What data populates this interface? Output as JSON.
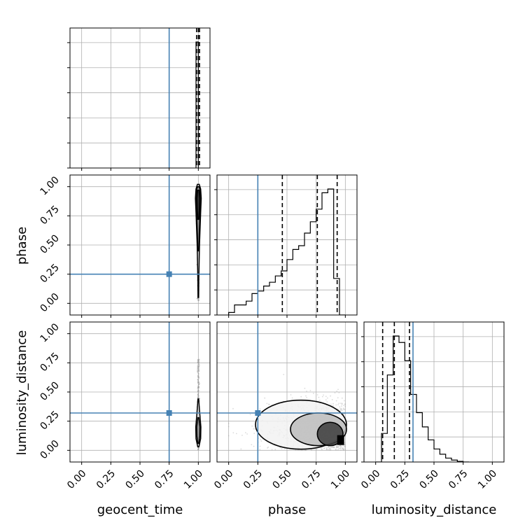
{
  "chart_data": {
    "type": "corner",
    "parameters": [
      "geocent_time",
      "phase",
      "luminosity_distance"
    ],
    "axis_range": [
      -0.1,
      1.1
    ],
    "tick_labels": [
      "0.00",
      "0.25",
      "0.50",
      "0.75",
      "1.00"
    ],
    "truths": {
      "geocent_time": 0.75,
      "phase": 0.25,
      "luminosity_distance": 0.32
    },
    "truth_color": "#4682b4",
    "grid": true,
    "histograms": {
      "geocent_time": {
        "bin_width": 0.02,
        "bins_start": 0.98,
        "counts": [
          1.0
        ],
        "quantiles": [
          0.985,
          1.0,
          1.01
        ]
      },
      "phase": {
        "bins_start": 0.0,
        "bin_width": 0.05,
        "counts": [
          0.02,
          0.08,
          0.08,
          0.11,
          0.17,
          0.19,
          0.23,
          0.26,
          0.31,
          0.35,
          0.44,
          0.52,
          0.55,
          0.65,
          0.74,
          0.84,
          0.97,
          1.0,
          0.29,
          0.0
        ],
        "quantiles": [
          0.46,
          0.76,
          0.93
        ]
      },
      "luminosity_distance": {
        "bins_start": 0.0,
        "bin_width": 0.05,
        "counts": [
          0.0,
          0.22,
          0.67,
          0.97,
          0.92,
          0.78,
          0.52,
          0.38,
          0.27,
          0.17,
          0.1,
          0.06,
          0.03,
          0.015,
          0.005,
          0.0
        ],
        "quantiles": [
          0.06,
          0.16,
          0.29
        ]
      }
    },
    "density_2d": {
      "phase_vs_geocent_time": {
        "x_param": "geocent_time",
        "y_param": "phase",
        "center_x": 1.0,
        "points_y_range": [
          0.02,
          1.02
        ],
        "contours": [
          {
            "ys": [
              0.05,
              0.2,
              0.5,
              0.78,
              0.9,
              0.98,
              1.02
            ],
            "half_widths": [
              0.003,
              0.004,
              0.01,
              0.02,
              0.025,
              0.02,
              0.008
            ]
          },
          {
            "ys": [
              0.45,
              0.6,
              0.8,
              0.9,
              0.98,
              1.0
            ],
            "half_widths": [
              0.004,
              0.008,
              0.016,
              0.018,
              0.014,
              0.005
            ]
          },
          {
            "ys": [
              0.72,
              0.82,
              0.9,
              0.97
            ],
            "half_widths": [
              0.004,
              0.01,
              0.012,
              0.006
            ]
          }
        ]
      },
      "luminosity_distance_vs_geocent_time": {
        "x_param": "geocent_time",
        "y_param": "luminosity_distance",
        "center_x": 1.0,
        "points_y_range": [
          0.0,
          0.78
        ],
        "contours": [
          {
            "ys": [
              0.03,
              0.1,
              0.2,
              0.32,
              0.44
            ],
            "half_widths": [
              0.005,
              0.02,
              0.022,
              0.012,
              0.003
            ]
          },
          {
            "ys": [
              0.06,
              0.12,
              0.2,
              0.28
            ],
            "half_widths": [
              0.004,
              0.012,
              0.014,
              0.004
            ]
          }
        ]
      },
      "luminosity_distance_vs_phase": {
        "x_param": "phase",
        "y_param": "luminosity_distance",
        "points_x_range": [
          0.0,
          1.02
        ],
        "points_y_range": [
          0.0,
          0.78
        ],
        "contours": [
          {
            "cx": 0.62,
            "cy": 0.22,
            "rx": 0.39,
            "ry": 0.21
          },
          {
            "cx": 0.77,
            "cy": 0.18,
            "rx": 0.24,
            "ry": 0.14
          },
          {
            "cx": 0.87,
            "cy": 0.14,
            "rx": 0.11,
            "ry": 0.1
          }
        ]
      }
    }
  }
}
